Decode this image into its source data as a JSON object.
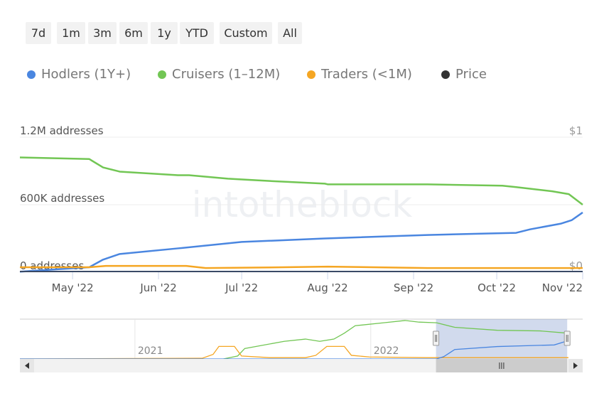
{
  "range_buttons": [
    "7d",
    "1m",
    "3m",
    "6m",
    "1y",
    "YTD",
    "Custom",
    "All"
  ],
  "watermark": "intotheblock",
  "chart_data": {
    "type": "line",
    "legend_position": "top-left",
    "grid": true,
    "series": [
      {
        "name": "Hodlers (1Y+)",
        "color": "#4a86e0",
        "points": [
          [
            "2022-04-12",
            5000
          ],
          [
            "2022-05-07",
            44000
          ],
          [
            "2022-05-12",
            112000
          ],
          [
            "2022-05-18",
            162000
          ],
          [
            "2022-06-08",
            212000
          ],
          [
            "2022-07-01",
            269000
          ],
          [
            "2022-07-31",
            300000
          ],
          [
            "2022-09-06",
            331000
          ],
          [
            "2022-09-28",
            344000
          ],
          [
            "2022-10-08",
            350000
          ],
          [
            "2022-10-13",
            381000
          ],
          [
            "2022-10-24",
            431000
          ],
          [
            "2022-10-28",
            462000
          ],
          [
            "2022-11-01",
            531000
          ]
        ]
      },
      {
        "name": "Cruisers (1–12M)",
        "color": "#72c654",
        "points": [
          [
            "2022-04-12",
            1020000
          ],
          [
            "2022-05-07",
            1006000
          ],
          [
            "2022-05-12",
            931000
          ],
          [
            "2022-05-18",
            894000
          ],
          [
            "2022-06-08",
            862000
          ],
          [
            "2022-06-12",
            862000
          ],
          [
            "2022-06-26",
            831000
          ],
          [
            "2022-07-10",
            812000
          ],
          [
            "2022-07-31",
            787000
          ],
          [
            "2022-08-01",
            781000
          ],
          [
            "2022-09-06",
            781000
          ],
          [
            "2022-10-03",
            769000
          ],
          [
            "2022-10-08",
            756000
          ],
          [
            "2022-10-21",
            719000
          ],
          [
            "2022-10-27",
            694000
          ],
          [
            "2022-11-01",
            600000
          ]
        ]
      },
      {
        "name": "Traders (<1M)",
        "color": "#f5a623",
        "points": [
          [
            "2022-04-12",
            44000
          ],
          [
            "2022-05-07",
            44000
          ],
          [
            "2022-05-13",
            56000
          ],
          [
            "2022-06-11",
            56000
          ],
          [
            "2022-06-18",
            37000
          ],
          [
            "2022-07-16",
            44000
          ],
          [
            "2022-08-01",
            50000
          ],
          [
            "2022-09-06",
            37000
          ],
          [
            "2022-11-01",
            37000
          ]
        ]
      },
      {
        "name": "Price",
        "color": "#333333",
        "points": []
      }
    ],
    "x_range": [
      "2022-04-12",
      "2022-11-01"
    ],
    "x_ticks": [
      {
        "date": "2022-05-01",
        "label": "May '22"
      },
      {
        "date": "2022-06-01",
        "label": "Jun '22"
      },
      {
        "date": "2022-07-01",
        "label": "Jul '22"
      },
      {
        "date": "2022-08-01",
        "label": "Aug '22"
      },
      {
        "date": "2022-09-01",
        "label": "Sep '22"
      },
      {
        "date": "2022-10-01",
        "label": "Oct '22"
      },
      {
        "date": "2022-11-01",
        "label": "Nov '22"
      }
    ],
    "y_left": {
      "range": [
        0,
        1200000
      ],
      "ticks": [
        {
          "value": 0,
          "label": "0 addresses"
        },
        {
          "value": 600000,
          "label": "600K addresses"
        },
        {
          "value": 1200000,
          "label": "1.2M addresses"
        }
      ]
    },
    "y_right": {
      "range": [
        0,
        1
      ],
      "ticks": [
        {
          "value": 0,
          "label": "$0"
        },
        {
          "value": 1,
          "label": "$1"
        }
      ]
    },
    "navigator": {
      "x_range": [
        "2020-07-07",
        "2022-11-03"
      ],
      "y_range": [
        0,
        1200000
      ],
      "x_ticks": [
        {
          "date": "2021-01-01",
          "label": "2021"
        },
        {
          "date": "2022-01-01",
          "label": "2022"
        }
      ],
      "selection": [
        "2022-04-12",
        "2022-11-01"
      ],
      "series": [
        {
          "color": "#72c654",
          "points": [
            [
              "2021-05-18",
              0
            ],
            [
              "2021-06-09",
              90000
            ],
            [
              "2021-06-20",
              320000
            ],
            [
              "2021-08-20",
              540000
            ],
            [
              "2021-09-22",
              610000
            ],
            [
              "2021-10-14",
              540000
            ],
            [
              "2021-11-05",
              610000
            ],
            [
              "2021-11-21",
              790000
            ],
            [
              "2021-12-08",
              1020000
            ],
            [
              "2022-01-21",
              1110000
            ],
            [
              "2022-02-23",
              1180000
            ],
            [
              "2022-03-17",
              1130000
            ],
            [
              "2022-04-13",
              1110000
            ],
            [
              "2022-05-11",
              970000
            ],
            [
              "2022-07-16",
              880000
            ],
            [
              "2022-09-20",
              860000
            ],
            [
              "2022-11-03",
              790000
            ]
          ]
        },
        {
          "color": "#f5a623",
          "points": [
            [
              "2020-07-07",
              0
            ],
            [
              "2021-04-15",
              20000
            ],
            [
              "2021-05-02",
              140000
            ],
            [
              "2021-05-11",
              385000
            ],
            [
              "2021-06-04",
              385000
            ],
            [
              "2021-06-15",
              90000
            ],
            [
              "2021-07-29",
              40000
            ],
            [
              "2021-09-22",
              40000
            ],
            [
              "2021-10-08",
              110000
            ],
            [
              "2021-10-25",
              385000
            ],
            [
              "2021-11-21",
              385000
            ],
            [
              "2021-12-02",
              110000
            ],
            [
              "2021-12-30",
              60000
            ],
            [
              "2022-03-28",
              40000
            ],
            [
              "2022-11-03",
              40000
            ]
          ]
        },
        {
          "color": "#4a86e0",
          "points": [
            [
              "2020-07-07",
              0
            ],
            [
              "2022-04-13",
              0
            ],
            [
              "2022-04-24",
              70000
            ],
            [
              "2022-05-11",
              290000
            ],
            [
              "2022-07-16",
              380000
            ],
            [
              "2022-10-12",
              430000
            ],
            [
              "2022-11-03",
              565000
            ]
          ]
        }
      ]
    }
  }
}
